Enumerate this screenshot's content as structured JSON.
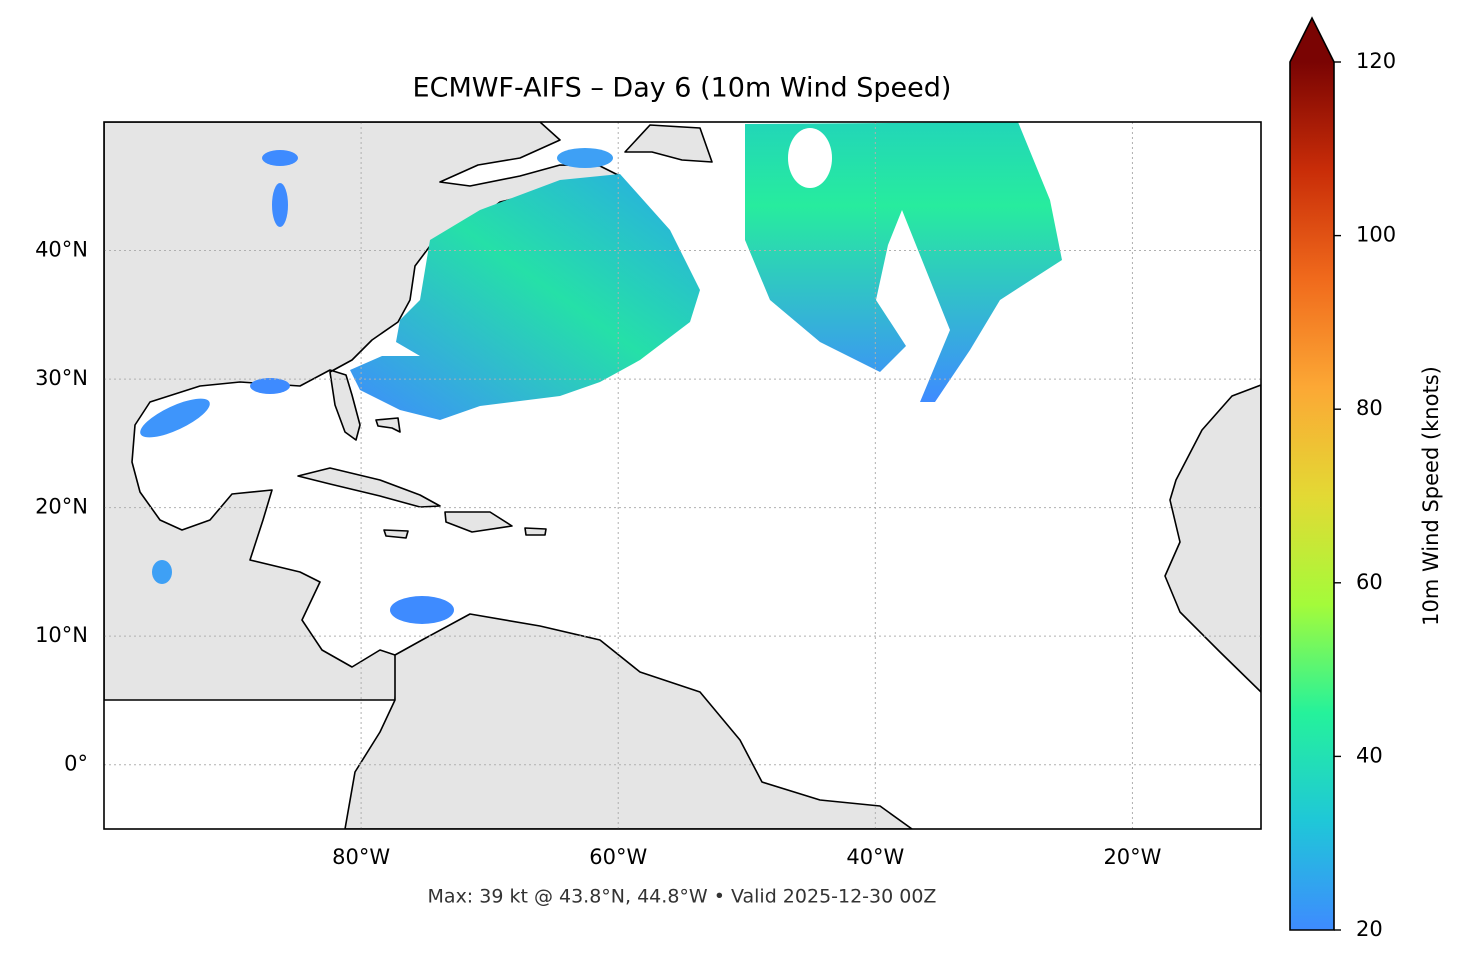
{
  "map": {
    "title": "ECMWF-AIFS – Day 6 (10m Wind Speed)",
    "footer": "Max: 39 kt @ 43.8°N, 44.8°W • Valid 2025-12-30 00Z",
    "xlim": [
      -100,
      -10
    ],
    "ylim": [
      -5,
      50
    ],
    "xticks": [
      {
        "value": -80,
        "label": "80°W"
      },
      {
        "value": -60,
        "label": "60°W"
      },
      {
        "value": -40,
        "label": "40°W"
      },
      {
        "value": -20,
        "label": "20°W"
      }
    ],
    "yticks": [
      {
        "value": 0,
        "label": "0°"
      },
      {
        "value": 10,
        "label": "10°N"
      },
      {
        "value": 20,
        "label": "20°N"
      },
      {
        "value": 30,
        "label": "30°N"
      },
      {
        "value": 40,
        "label": "40°N"
      }
    ],
    "grid": true,
    "colorbar": {
      "label": "10m Wind Speed (knots)",
      "lim": [
        20,
        120
      ],
      "ticks": [
        20,
        40,
        60,
        80,
        100,
        120
      ],
      "colors": [
        "#3e8bff",
        "#1fc7d8",
        "#25f29b",
        "#a4fb3a",
        "#e3d934",
        "#fca835",
        "#f06a1c",
        "#c92d08",
        "#7a0403"
      ]
    }
  }
}
